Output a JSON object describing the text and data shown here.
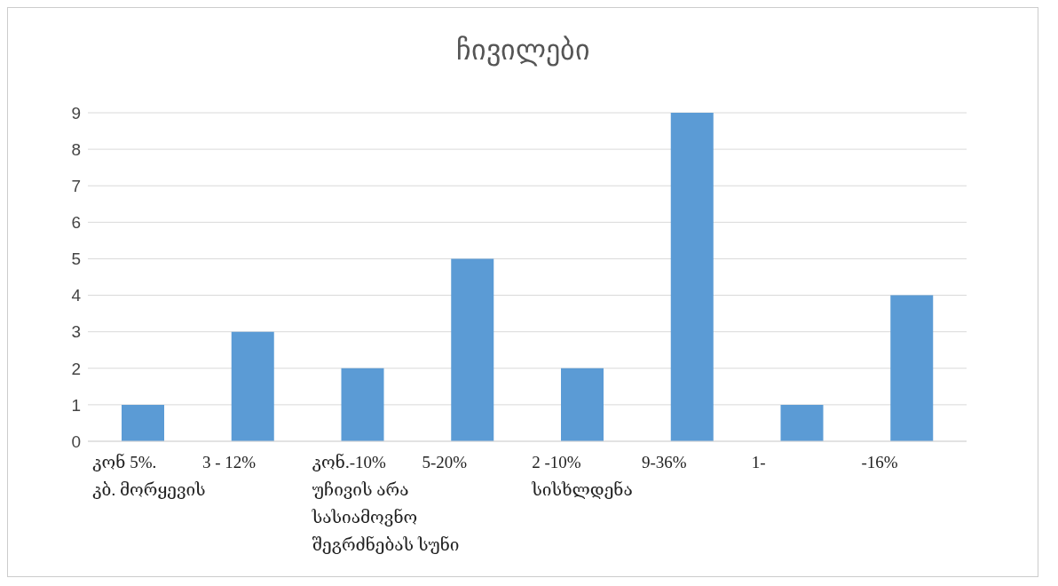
{
  "chart_data": {
    "type": "bar",
    "title": "ჩივილები",
    "categories": [
      "კონ 5%.\nკბ. მორყევის",
      "3 - 12%",
      "კონ.-10%\nუჩივის არა\nსასიამოვნო\nშეგრძნებას სუნი",
      "5-20%",
      "2 -10%\n\nსისხლდენა",
      "9-36%",
      "1-",
      "-16%"
    ],
    "values": [
      1,
      3,
      2,
      5,
      2,
      9,
      1,
      4
    ],
    "color": "#5b9bd5",
    "ylim": [
      0,
      9
    ],
    "yticks": [
      0,
      1,
      2,
      3,
      4,
      5,
      6,
      7,
      8,
      9
    ],
    "grid": "y"
  }
}
